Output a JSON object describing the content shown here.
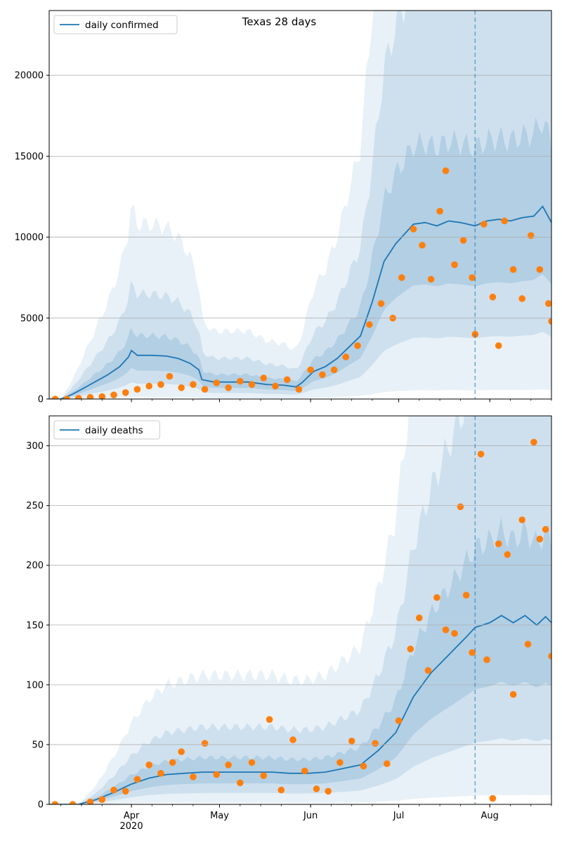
{
  "chart_data": [
    {
      "type": "line",
      "title": "Texas 28 days",
      "xlabel": "",
      "ylabel": "",
      "xlim": [
        "2020-03-04",
        "2020-08-22"
      ],
      "ylim": [
        0,
        24000
      ],
      "y_ticks": [
        0,
        5000,
        10000,
        15000,
        20000
      ],
      "grid": "horizontal",
      "legend_position": "top-left",
      "forecast_start": "2020-07-27",
      "series": [
        {
          "name": "daily confirmed",
          "kind": "line",
          "color": "#1f77b4",
          "points": [
            [
              "2020-03-04",
              0
            ],
            [
              "2020-03-08",
              0
            ],
            [
              "2020-03-12",
              300
            ],
            [
              "2020-03-16",
              700
            ],
            [
              "2020-03-20",
              1100
            ],
            [
              "2020-03-24",
              1500
            ],
            [
              "2020-03-28",
              2000
            ],
            [
              "2020-03-31",
              2600
            ],
            [
              "2020-04-01",
              3000
            ],
            [
              "2020-04-03",
              2700
            ],
            [
              "2020-04-08",
              2700
            ],
            [
              "2020-04-13",
              2650
            ],
            [
              "2020-04-17",
              2500
            ],
            [
              "2020-04-21",
              2200
            ],
            [
              "2020-04-24",
              1800
            ],
            [
              "2020-04-25",
              1200
            ],
            [
              "2020-04-29",
              1050
            ],
            [
              "2020-05-05",
              1050
            ],
            [
              "2020-05-11",
              1050
            ],
            [
              "2020-05-17",
              900
            ],
            [
              "2020-05-23",
              850
            ],
            [
              "2020-05-27",
              750
            ],
            [
              "2020-05-29",
              1000
            ],
            [
              "2020-06-02",
              1700
            ],
            [
              "2020-06-06",
              2000
            ],
            [
              "2020-06-10",
              2500
            ],
            [
              "2020-06-14",
              3200
            ],
            [
              "2020-06-18",
              3900
            ],
            [
              "2020-06-22",
              6000
            ],
            [
              "2020-06-26",
              8500
            ],
            [
              "2020-06-30",
              9600
            ],
            [
              "2020-07-02",
              10000
            ],
            [
              "2020-07-06",
              10800
            ],
            [
              "2020-07-10",
              10900
            ],
            [
              "2020-07-14",
              10700
            ],
            [
              "2020-07-18",
              11000
            ],
            [
              "2020-07-22",
              10900
            ],
            [
              "2020-07-27",
              10700
            ],
            [
              "2020-07-31",
              11000
            ],
            [
              "2020-08-04",
              11100
            ],
            [
              "2020-08-08",
              11000
            ],
            [
              "2020-08-12",
              11200
            ],
            [
              "2020-08-16",
              11300
            ],
            [
              "2020-08-19",
              11900
            ],
            [
              "2020-08-22",
              10900
            ]
          ]
        },
        {
          "name": "",
          "kind": "scatter",
          "color": "#ff7f0e",
          "points": [
            [
              "2020-03-06",
              0
            ],
            [
              "2020-03-10",
              0
            ],
            [
              "2020-03-14",
              50
            ],
            [
              "2020-03-18",
              100
            ],
            [
              "2020-03-22",
              150
            ],
            [
              "2020-03-26",
              250
            ],
            [
              "2020-03-30",
              400
            ],
            [
              "2020-04-03",
              600
            ],
            [
              "2020-04-07",
              800
            ],
            [
              "2020-04-11",
              900
            ],
            [
              "2020-04-14",
              1400
            ],
            [
              "2020-04-18",
              700
            ],
            [
              "2020-04-22",
              900
            ],
            [
              "2020-04-26",
              600
            ],
            [
              "2020-04-30",
              1000
            ],
            [
              "2020-05-04",
              700
            ],
            [
              "2020-05-08",
              1100
            ],
            [
              "2020-05-12",
              900
            ],
            [
              "2020-05-16",
              1300
            ],
            [
              "2020-05-20",
              800
            ],
            [
              "2020-05-24",
              1200
            ],
            [
              "2020-05-28",
              600
            ],
            [
              "2020-06-01",
              1800
            ],
            [
              "2020-06-05",
              1500
            ],
            [
              "2020-06-09",
              1800
            ],
            [
              "2020-06-13",
              2600
            ],
            [
              "2020-06-17",
              3300
            ],
            [
              "2020-06-21",
              4600
            ],
            [
              "2020-06-25",
              5900
            ],
            [
              "2020-06-29",
              5000
            ],
            [
              "2020-07-02",
              7500
            ],
            [
              "2020-07-06",
              10500
            ],
            [
              "2020-07-09",
              9500
            ],
            [
              "2020-07-12",
              7400
            ],
            [
              "2020-07-15",
              11600
            ],
            [
              "2020-07-17",
              14100
            ],
            [
              "2020-07-20",
              8300
            ],
            [
              "2020-07-23",
              9800
            ],
            [
              "2020-07-26",
              7500
            ],
            [
              "2020-07-27",
              4000
            ],
            [
              "2020-07-30",
              10800
            ],
            [
              "2020-08-02",
              6300
            ],
            [
              "2020-08-04",
              3300
            ],
            [
              "2020-08-06",
              11000
            ],
            [
              "2020-08-09",
              8000
            ],
            [
              "2020-08-12",
              6200
            ],
            [
              "2020-08-15",
              10100
            ],
            [
              "2020-08-18",
              8000
            ],
            [
              "2020-08-21",
              5900
            ],
            [
              "2020-08-22",
              4800
            ]
          ]
        }
      ]
    },
    {
      "type": "line",
      "title": "",
      "xlabel": "",
      "ylabel": "",
      "xlim": [
        "2020-03-04",
        "2020-08-22"
      ],
      "ylim": [
        0,
        325
      ],
      "y_ticks": [
        0,
        50,
        100,
        150,
        200,
        250,
        300
      ],
      "x_ticks": [
        "Apr\n2020",
        "May",
        "Jun",
        "Jul",
        "Aug"
      ],
      "grid": "horizontal",
      "legend_position": "top-left",
      "forecast_start": "2020-07-27",
      "series": [
        {
          "name": "daily deaths",
          "kind": "line",
          "color": "#1f77b4",
          "points": [
            [
              "2020-03-04",
              0
            ],
            [
              "2020-03-14",
              0
            ],
            [
              "2020-03-20",
              4
            ],
            [
              "2020-03-26",
              10
            ],
            [
              "2020-04-01",
              17
            ],
            [
              "2020-04-07",
              22
            ],
            [
              "2020-04-13",
              25
            ],
            [
              "2020-04-19",
              26
            ],
            [
              "2020-04-25",
              27
            ],
            [
              "2020-05-01",
              27
            ],
            [
              "2020-05-07",
              27
            ],
            [
              "2020-05-13",
              27
            ],
            [
              "2020-05-19",
              27
            ],
            [
              "2020-05-25",
              26
            ],
            [
              "2020-05-31",
              26
            ],
            [
              "2020-06-06",
              27
            ],
            [
              "2020-06-12",
              30
            ],
            [
              "2020-06-18",
              33
            ],
            [
              "2020-06-24",
              45
            ],
            [
              "2020-06-30",
              60
            ],
            [
              "2020-07-06",
              90
            ],
            [
              "2020-07-12",
              110
            ],
            [
              "2020-07-18",
              125
            ],
            [
              "2020-07-24",
              140
            ],
            [
              "2020-07-27",
              148
            ],
            [
              "2020-08-01",
              152
            ],
            [
              "2020-08-05",
              158
            ],
            [
              "2020-08-09",
              152
            ],
            [
              "2020-08-13",
              158
            ],
            [
              "2020-08-17",
              150
            ],
            [
              "2020-08-20",
              157
            ],
            [
              "2020-08-22",
              152
            ]
          ]
        },
        {
          "name": "",
          "kind": "scatter",
          "color": "#ff7f0e",
          "points": [
            [
              "2020-03-06",
              0
            ],
            [
              "2020-03-12",
              0
            ],
            [
              "2020-03-18",
              2
            ],
            [
              "2020-03-22",
              4
            ],
            [
              "2020-03-26",
              12
            ],
            [
              "2020-03-30",
              11
            ],
            [
              "2020-04-03",
              21
            ],
            [
              "2020-04-07",
              33
            ],
            [
              "2020-04-11",
              26
            ],
            [
              "2020-04-15",
              35
            ],
            [
              "2020-04-18",
              44
            ],
            [
              "2020-04-22",
              23
            ],
            [
              "2020-04-26",
              51
            ],
            [
              "2020-04-30",
              25
            ],
            [
              "2020-05-04",
              33
            ],
            [
              "2020-05-08",
              18
            ],
            [
              "2020-05-12",
              35
            ],
            [
              "2020-05-16",
              24
            ],
            [
              "2020-05-18",
              71
            ],
            [
              "2020-05-22",
              12
            ],
            [
              "2020-05-26",
              54
            ],
            [
              "2020-05-30",
              28
            ],
            [
              "2020-06-03",
              13
            ],
            [
              "2020-06-07",
              11
            ],
            [
              "2020-06-11",
              35
            ],
            [
              "2020-06-15",
              53
            ],
            [
              "2020-06-19",
              32
            ],
            [
              "2020-06-23",
              51
            ],
            [
              "2020-06-27",
              34
            ],
            [
              "2020-07-01",
              70
            ],
            [
              "2020-07-05",
              130
            ],
            [
              "2020-07-08",
              156
            ],
            [
              "2020-07-11",
              112
            ],
            [
              "2020-07-14",
              173
            ],
            [
              "2020-07-17",
              146
            ],
            [
              "2020-07-20",
              143
            ],
            [
              "2020-07-22",
              249
            ],
            [
              "2020-07-24",
              175
            ],
            [
              "2020-07-26",
              127
            ],
            [
              "2020-07-29",
              293
            ],
            [
              "2020-07-31",
              121
            ],
            [
              "2020-08-02",
              5
            ],
            [
              "2020-08-04",
              218
            ],
            [
              "2020-08-07",
              209
            ],
            [
              "2020-08-09",
              92
            ],
            [
              "2020-08-12",
              238
            ],
            [
              "2020-08-14",
              134
            ],
            [
              "2020-08-16",
              303
            ],
            [
              "2020-08-18",
              222
            ],
            [
              "2020-08-20",
              230
            ],
            [
              "2020-08-22",
              124
            ]
          ]
        }
      ]
    }
  ]
}
